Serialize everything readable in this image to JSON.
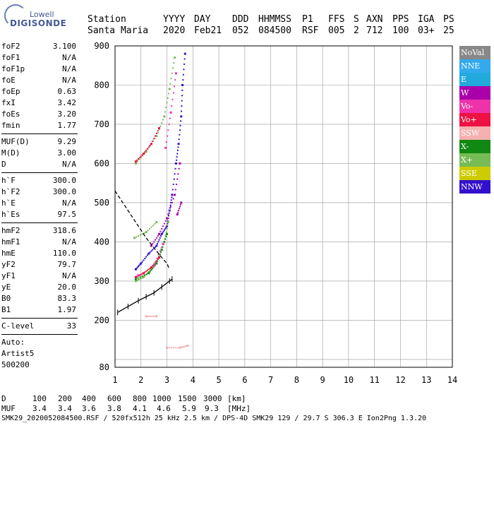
{
  "logo": {
    "line1": "Lowell",
    "line2": "DIGISONDE"
  },
  "header": {
    "labels": [
      "Station",
      "YYYY",
      "DAY",
      "DDD",
      "HHMMSS",
      "P1",
      "FFS",
      "S",
      "AXN",
      "PPS",
      "IGA",
      "PS"
    ],
    "values": [
      "Santa Maria",
      "2020",
      "Feb21",
      "052",
      "084500",
      "RSF",
      "005",
      "2",
      "712",
      "100",
      "03+",
      "25"
    ]
  },
  "params_group1": [
    {
      "label": "foF2",
      "value": "3.100"
    },
    {
      "label": "foF1",
      "value": "N/A"
    },
    {
      "label": "foF1p",
      "value": "N/A"
    },
    {
      "label": "foE",
      "value": "N/A"
    },
    {
      "label": "foEp",
      "value": "0.63"
    },
    {
      "label": "fxI",
      "value": "3.42"
    },
    {
      "label": "foEs",
      "value": "3.20"
    },
    {
      "label": "fmin",
      "value": "1.77"
    }
  ],
  "params_group2": [
    {
      "label": "MUF(D)",
      "value": "9.29"
    },
    {
      "label": "M(D)",
      "value": "3.00"
    },
    {
      "label": "D",
      "value": "N/A"
    }
  ],
  "params_group3": [
    {
      "label": "h`F",
      "value": "300.0"
    },
    {
      "label": "h`F2",
      "value": "300.0"
    },
    {
      "label": "h`E",
      "value": "N/A"
    },
    {
      "label": "h`Es",
      "value": "97.5"
    }
  ],
  "params_group4": [
    {
      "label": "hmF2",
      "value": "318.6"
    },
    {
      "label": "hmF1",
      "value": "N/A"
    },
    {
      "label": "hmE",
      "value": "110.0"
    },
    {
      "label": "yF2",
      "value": "79.7"
    },
    {
      "label": "yF1",
      "value": "N/A"
    },
    {
      "label": "yE",
      "value": "20.0"
    },
    {
      "label": "B0",
      "value": "83.3"
    },
    {
      "label": "B1",
      "value": "1.97"
    }
  ],
  "params_group5": [
    {
      "label": "C-level",
      "value": "33"
    }
  ],
  "auto": {
    "line1": "Auto:",
    "line2": "Artist5",
    "line3": "500200"
  },
  "legend": [
    {
      "label": "NoVal",
      "color": "#888888"
    },
    {
      "label": "NNE",
      "color": "#33aaee"
    },
    {
      "label": "E",
      "color": "#22aadd"
    },
    {
      "label": "W",
      "color": "#aa00aa"
    },
    {
      "label": "Vo-",
      "color": "#ee33aa"
    },
    {
      "label": "Vo+",
      "color": "#ee1144"
    },
    {
      "label": "SSW",
      "color": "#f5b0b0"
    },
    {
      "label": "X-",
      "color": "#118811"
    },
    {
      "label": "X+",
      "color": "#77bb55"
    },
    {
      "label": "SSE",
      "color": "#cccc00"
    },
    {
      "label": "NNW",
      "color": "#3311cc"
    }
  ],
  "bottom": {
    "row1_label": "D",
    "row1_values": [
      "100",
      "200",
      "400",
      "600",
      "800",
      "1000",
      "1500",
      "3000",
      "[km]"
    ],
    "row2_label": "MUF",
    "row2_values": [
      "3.4",
      "3.4",
      "3.6",
      "3.8",
      "4.1",
      "4.6",
      "5.9",
      "9.3",
      "[MHz]"
    ],
    "footer": "SMK29_2020052084500.RSF / 520fx512h 25 kHz 2.5 km / DPS-4D SMK29 129 / 29.7 S 306.3 E Ion2Png 1.3.20"
  },
  "chart_data": {
    "type": "scatter",
    "title": "",
    "xlabel": "",
    "ylabel": "",
    "xlim": [
      1,
      14
    ],
    "ylim": [
      80,
      900
    ],
    "x_ticks": [
      1,
      2,
      3,
      4,
      5,
      6,
      7,
      8,
      9,
      10,
      11,
      12,
      13,
      14
    ],
    "y_ticks": [
      80,
      100,
      200,
      300,
      400,
      500,
      600,
      700,
      800,
      900
    ],
    "y_tick_labels": [
      "80",
      "",
      "200",
      "300",
      "400",
      "500",
      "600",
      "700",
      "800",
      "900"
    ],
    "grid": true,
    "series": [
      {
        "name": "NNW",
        "color": "#3311cc",
        "points": [
          [
            1.8,
            330
          ],
          [
            2.0,
            345
          ],
          [
            2.3,
            370
          ],
          [
            2.6,
            390
          ],
          [
            2.8,
            420
          ],
          [
            3.0,
            440
          ],
          [
            3.1,
            480
          ],
          [
            3.2,
            520
          ],
          [
            3.35,
            600
          ],
          [
            3.45,
            650
          ],
          [
            3.55,
            720
          ],
          [
            3.6,
            800
          ],
          [
            3.7,
            880
          ]
        ]
      },
      {
        "name": "X+",
        "color": "#77bb55",
        "points": [
          [
            1.8,
            300
          ],
          [
            2.1,
            310
          ],
          [
            2.4,
            330
          ],
          [
            2.7,
            360
          ],
          [
            2.9,
            400
          ],
          [
            3.05,
            450
          ],
          [
            1.75,
            410
          ],
          [
            2.2,
            425
          ],
          [
            2.6,
            450
          ],
          [
            1.8,
            600
          ],
          [
            2.2,
            630
          ],
          [
            2.6,
            670
          ],
          [
            2.9,
            720
          ],
          [
            3.1,
            790
          ],
          [
            3.3,
            870
          ]
        ]
      },
      {
        "name": "X-",
        "color": "#118811",
        "points": [
          [
            1.8,
            305
          ],
          [
            2.3,
            320
          ],
          [
            2.6,
            345
          ],
          [
            2.8,
            380
          ],
          [
            3.0,
            420
          ]
        ]
      },
      {
        "name": "Vo+",
        "color": "#ee1144",
        "points": [
          [
            1.8,
            310
          ],
          [
            2.1,
            320
          ],
          [
            2.4,
            335
          ],
          [
            2.7,
            360
          ],
          [
            1.8,
            605
          ],
          [
            2.1,
            625
          ],
          [
            2.4,
            650
          ],
          [
            2.7,
            690
          ]
        ]
      },
      {
        "name": "Vo-",
        "color": "#ee33aa",
        "points": [
          [
            1.9,
            315
          ],
          [
            2.5,
            340
          ],
          [
            2.85,
            395
          ],
          [
            2.95,
            640
          ],
          [
            3.15,
            730
          ],
          [
            3.35,
            830
          ]
        ]
      },
      {
        "name": "W",
        "color": "#aa00aa",
        "points": [
          [
            2.4,
            390
          ],
          [
            2.7,
            420
          ],
          [
            3.0,
            460
          ],
          [
            3.3,
            520
          ],
          [
            3.5,
            600
          ],
          [
            3.4,
            470
          ],
          [
            3.55,
            500
          ]
        ]
      },
      {
        "name": "SSW",
        "color": "#f5b0b0",
        "points": [
          [
            3.0,
            130
          ],
          [
            3.5,
            130
          ],
          [
            3.8,
            135
          ],
          [
            2.2,
            210
          ],
          [
            2.6,
            210
          ]
        ]
      }
    ],
    "trace_profile": [
      [
        1.0,
        530
      ],
      [
        1.3,
        500
      ],
      [
        1.6,
        470
      ],
      [
        1.9,
        440
      ],
      [
        2.2,
        410
      ],
      [
        2.5,
        385
      ],
      [
        2.8,
        360
      ],
      [
        3.0,
        345
      ],
      [
        3.1,
        330
      ]
    ],
    "trace_lower": [
      [
        1.1,
        220
      ],
      [
        1.5,
        235
      ],
      [
        1.9,
        250
      ],
      [
        2.2,
        260
      ],
      [
        2.5,
        270
      ],
      [
        2.8,
        285
      ],
      [
        3.1,
        300
      ],
      [
        3.2,
        305
      ]
    ]
  }
}
